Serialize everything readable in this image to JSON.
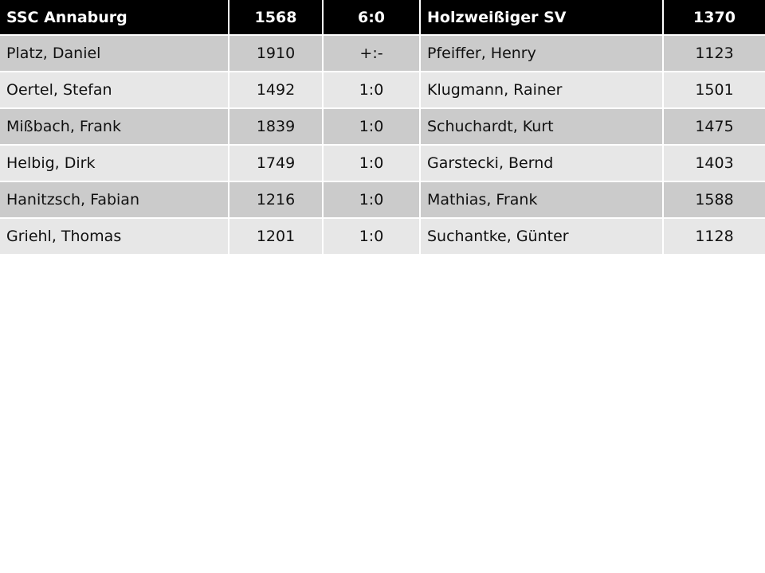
{
  "header": {
    "home_team": "SSC Annaburg",
    "home_rating": "1568",
    "score": "6:0",
    "away_team": "Holzweißiger SV",
    "away_rating": "1370"
  },
  "rows": [
    {
      "home_player": "Platz, Daniel",
      "home_rating": "1910",
      "result": "+:-",
      "away_player": "Pfeiffer, Henry",
      "away_rating": "1123"
    },
    {
      "home_player": "Oertel, Stefan",
      "home_rating": "1492",
      "result": "1:0",
      "away_player": "Klugmann, Rainer",
      "away_rating": "1501"
    },
    {
      "home_player": "Mißbach, Frank",
      "home_rating": "1839",
      "result": "1:0",
      "away_player": "Schuchardt, Kurt",
      "away_rating": "1475"
    },
    {
      "home_player": "Helbig, Dirk",
      "home_rating": "1749",
      "result": "1:0",
      "away_player": "Garstecki, Bernd",
      "away_rating": "1403"
    },
    {
      "home_player": "Hanitzsch, Fabian",
      "home_rating": "1216",
      "result": "1:0",
      "away_player": "Mathias, Frank",
      "away_rating": "1588"
    },
    {
      "home_player": "Griehl, Thomas",
      "home_rating": "1201",
      "result": "1:0",
      "away_player": "Suchantke, Günter",
      "away_rating": "1128"
    }
  ],
  "colors": {
    "header_bg": "#000000",
    "row_dark": "#cbcbcb",
    "row_light": "#e7e7e7"
  }
}
